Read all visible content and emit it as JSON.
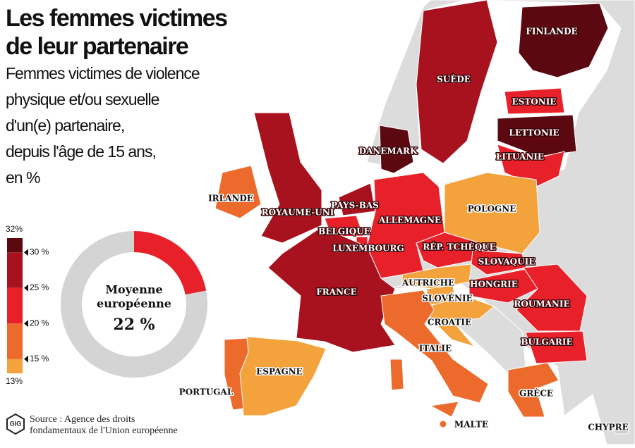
{
  "title_lines": [
    "Les femmes victimes",
    "de leur partenaire"
  ],
  "subtitle_lines": [
    "Femmes victimes de violence",
    "physique et/ou sexuelle",
    "d'un(e) partenaire,",
    "depuis l'âge de 15 ans,",
    "en %"
  ],
  "legend": {
    "bins": [
      13,
      15,
      20,
      25,
      30,
      32
    ],
    "colors": [
      "#f4a23c",
      "#ec6a2c",
      "#e8202a",
      "#a8121e",
      "#5c0810"
    ],
    "ticks": [
      {
        "value": 32,
        "label": "32%"
      },
      {
        "value": 30,
        "label": "30 %"
      },
      {
        "value": 25,
        "label": "25 %"
      },
      {
        "value": 20,
        "label": "20 %"
      },
      {
        "value": 15,
        "label": "15 %"
      },
      {
        "value": 13,
        "label": "13%"
      }
    ]
  },
  "average": {
    "label_lines": [
      "Moyenne",
      "européenne"
    ],
    "value": 22,
    "value_label": "22 %"
  },
  "countries": [
    {
      "label": "FINLANDE",
      "color": "#5c0810"
    },
    {
      "label": "SUÈDE",
      "color": "#a8121e"
    },
    {
      "label": "ESTONIE",
      "color": "#e8202a"
    },
    {
      "label": "LETTONIE",
      "color": "#5c0810"
    },
    {
      "label": "LITUANIE",
      "color": "#e8202a"
    },
    {
      "label": "DANEMARK",
      "color": "#5c0810"
    },
    {
      "label": "IRLANDE",
      "color": "#ec6a2c"
    },
    {
      "label": "ROYAUME-UNI",
      "color": "#a8121e"
    },
    {
      "label": "PAYS-BAS",
      "color": "#a8121e"
    },
    {
      "label": "BELGIQUE",
      "color": "#e8202a"
    },
    {
      "label": "LUXEMBOURG",
      "color": "#e8202a"
    },
    {
      "label": "ALLEMAGNE",
      "color": "#e8202a"
    },
    {
      "label": "POLOGNE",
      "color": "#f4a23c"
    },
    {
      "label": "RÉP. TCHÈQUE",
      "color": "#e8202a"
    },
    {
      "label": "SLOVAQUIE",
      "color": "#e8202a"
    },
    {
      "label": "AUTRICHE",
      "color": "#f4a23c"
    },
    {
      "label": "HONGRIE",
      "color": "#e8202a"
    },
    {
      "label": "SLOVÉNIE",
      "color": "#f4a23c"
    },
    {
      "label": "CROATIE",
      "color": "#f4a23c"
    },
    {
      "label": "ROUMANIE",
      "color": "#e8202a"
    },
    {
      "label": "BULGARIE",
      "color": "#e8202a"
    },
    {
      "label": "FRANCE",
      "color": "#a8121e"
    },
    {
      "label": "ITALIE",
      "color": "#ec6a2c"
    },
    {
      "label": "ESPAGNE",
      "color": "#f4a23c"
    },
    {
      "label": "PORTUGAL",
      "color": "#ec6a2c"
    },
    {
      "label": "GRÈCE",
      "color": "#ec6a2c"
    },
    {
      "label": "MALTE",
      "color": "#ec6a2c"
    },
    {
      "label": "CHYPRE"
    }
  ],
  "source_lines": [
    "Source : Agence des droits",
    "fondamentaux de l'Union européenne"
  ]
}
